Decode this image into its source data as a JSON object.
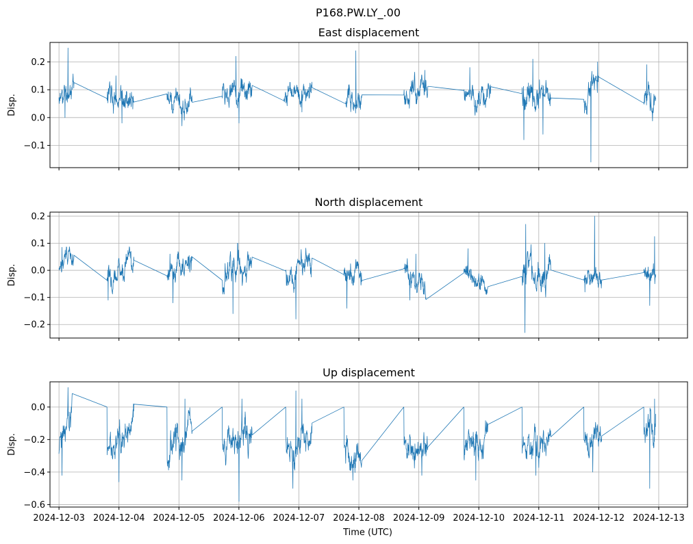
{
  "figure": {
    "suptitle": "P168.PW.LY_.00",
    "xlabel": "Time (UTC)"
  },
  "colors": {
    "series": "#1f77b4"
  },
  "chart_data": [
    {
      "type": "line",
      "title": "East displacement",
      "ylabel": "Disp.",
      "xlim": [
        -0.15,
        10.48
      ],
      "ylim": [
        -0.18,
        0.27
      ],
      "yticks": [
        -0.1,
        0.0,
        0.1,
        0.2
      ],
      "yticklabels": [
        "−0.1",
        "0.0",
        "0.1",
        "0.2"
      ],
      "segments": [
        {
          "start": 0.0,
          "end": 0.25,
          "seed": 11,
          "base": [
            0.06,
            0.12
          ],
          "amp": 0.05,
          "spikes": [
            [
              0.15,
              0.25
            ],
            [
              0.1,
              0.0
            ]
          ]
        },
        {
          "start": 0.8,
          "end": 1.25,
          "seed": 12,
          "base": [
            0.07,
            0.08
          ],
          "amp": 0.05,
          "spikes": [
            [
              1.05,
              -0.02
            ],
            [
              0.95,
              0.15
            ]
          ]
        },
        {
          "start": 1.8,
          "end": 2.22,
          "seed": 13,
          "base": [
            0.07,
            0.06
          ],
          "amp": 0.05,
          "spikes": [
            [
              2.05,
              -0.03
            ]
          ]
        },
        {
          "start": 2.72,
          "end": 3.22,
          "seed": 14,
          "base": [
            0.075,
            0.115
          ],
          "amp": 0.05,
          "spikes": [
            [
              3.0,
              -0.02
            ],
            [
              2.95,
              0.22
            ]
          ]
        },
        {
          "start": 3.75,
          "end": 4.22,
          "seed": 15,
          "base": [
            0.07,
            0.1
          ],
          "amp": 0.04,
          "spikes": [
            [
              4.05,
              0.02
            ]
          ]
        },
        {
          "start": 4.78,
          "end": 5.05,
          "seed": 16,
          "base": [
            0.075,
            0.055
          ],
          "amp": 0.05,
          "spikes": [
            [
              4.95,
              0.24
            ]
          ]
        },
        {
          "start": 5.75,
          "end": 6.15,
          "seed": 17,
          "base": [
            0.075,
            0.11
          ],
          "amp": 0.05,
          "spikes": [
            [
              6.1,
              0.17
            ]
          ]
        },
        {
          "start": 6.75,
          "end": 7.2,
          "seed": 18,
          "base": [
            0.075,
            0.08
          ],
          "amp": 0.05,
          "spikes": [
            [
              6.85,
              0.18
            ]
          ]
        },
        {
          "start": 7.72,
          "end": 8.2,
          "seed": 19,
          "base": [
            0.075,
            0.07
          ],
          "amp": 0.06,
          "spikes": [
            [
              7.75,
              -0.08
            ],
            [
              7.9,
              0.21
            ],
            [
              8.07,
              -0.06
            ]
          ]
        },
        {
          "start": 8.75,
          "end": 9.0,
          "seed": 20,
          "base": [
            0.07,
            0.12
          ],
          "amp": 0.05,
          "spikes": [
            [
              8.87,
              -0.16
            ],
            [
              8.98,
              0.2
            ]
          ]
        },
        {
          "start": 9.75,
          "end": 9.95,
          "seed": 21,
          "base": [
            0.07,
            0.08
          ],
          "amp": 0.05,
          "spikes": [
            [
              9.8,
              0.19
            ]
          ]
        }
      ]
    },
    {
      "type": "line",
      "title": "North displacement",
      "ylabel": "Disp.",
      "xlim": [
        -0.15,
        10.48
      ],
      "ylim": [
        -0.25,
        0.215
      ],
      "yticks": [
        -0.2,
        -0.1,
        0.0,
        0.1,
        0.2
      ],
      "yticklabels": [
        "−0.2",
        "−0.1",
        "0.0",
        "0.1",
        "0.2"
      ],
      "segments": [
        {
          "start": 0.0,
          "end": 0.25,
          "seed": 31,
          "base": [
            0.01,
            0.055
          ],
          "amp": 0.04,
          "spikes": [
            [
              0.05,
              0.085
            ]
          ]
        },
        {
          "start": 0.8,
          "end": 1.25,
          "seed": 32,
          "base": [
            -0.02,
            0.05
          ],
          "amp": 0.05,
          "spikes": [
            [
              0.82,
              -0.11
            ],
            [
              1.2,
              0.07
            ]
          ]
        },
        {
          "start": 1.8,
          "end": 2.22,
          "seed": 33,
          "base": [
            -0.02,
            0.05
          ],
          "amp": 0.05,
          "spikes": [
            [
              1.9,
              -0.12
            ],
            [
              1.85,
              0.06
            ]
          ]
        },
        {
          "start": 2.72,
          "end": 3.22,
          "seed": 34,
          "base": [
            -0.02,
            0.05
          ],
          "amp": 0.06,
          "spikes": [
            [
              2.9,
              -0.16
            ],
            [
              2.98,
              0.1
            ]
          ]
        },
        {
          "start": 3.78,
          "end": 4.22,
          "seed": 35,
          "base": [
            -0.02,
            0.045
          ],
          "amp": 0.05,
          "spikes": [
            [
              3.95,
              -0.18
            ],
            [
              4.1,
              0.04
            ]
          ]
        },
        {
          "start": 4.75,
          "end": 5.05,
          "seed": 36,
          "base": [
            -0.02,
            -0.045
          ],
          "amp": 0.05,
          "spikes": [
            [
              4.8,
              -0.14
            ],
            [
              4.95,
              0.04
            ]
          ]
        },
        {
          "start": 5.75,
          "end": 6.12,
          "seed": 37,
          "base": [
            -0.015,
            -0.055
          ],
          "amp": 0.05,
          "spikes": [
            [
              5.85,
              -0.11
            ],
            [
              5.95,
              0.06
            ]
          ]
        },
        {
          "start": 6.75,
          "end": 7.15,
          "seed": 38,
          "base": [
            -0.015,
            -0.04
          ],
          "amp": 0.04,
          "spikes": [
            [
              6.82,
              0.08
            ]
          ]
        },
        {
          "start": 7.72,
          "end": 8.2,
          "seed": 39,
          "base": [
            -0.015,
            -0.005
          ],
          "amp": 0.06,
          "spikes": [
            [
              7.77,
              -0.23
            ],
            [
              7.78,
              0.17
            ],
            [
              8.1,
              0.1
            ]
          ]
        },
        {
          "start": 8.75,
          "end": 9.05,
          "seed": 40,
          "base": [
            -0.02,
            -0.015
          ],
          "amp": 0.04,
          "spikes": [
            [
              8.93,
              0.2
            ],
            [
              8.77,
              -0.08
            ]
          ]
        },
        {
          "start": 9.75,
          "end": 9.95,
          "seed": 41,
          "base": [
            -0.02,
            -0.02
          ],
          "amp": 0.05,
          "spikes": [
            [
              9.93,
              0.125
            ],
            [
              9.85,
              -0.13
            ]
          ]
        }
      ]
    },
    {
      "type": "line",
      "title": "Up displacement",
      "ylabel": "Disp.",
      "xlim": [
        -0.15,
        10.48
      ],
      "ylim": [
        -0.615,
        0.155
      ],
      "yticks": [
        -0.6,
        -0.4,
        -0.2,
        0.0
      ],
      "yticklabels": [
        "−0.6",
        "−0.4",
        "−0.2",
        "0.0"
      ],
      "segments": [
        {
          "start": 0.0,
          "end": 0.22,
          "seed": 51,
          "base": [
            -0.25,
            -0.02
          ],
          "amp": 0.1,
          "spikes": [
            [
              0.15,
              0.12
            ],
            [
              0.05,
              -0.42
            ]
          ]
        },
        {
          "start": 0.8,
          "end": 1.25,
          "seed": 52,
          "base": [
            -0.28,
            -0.1
          ],
          "amp": 0.1,
          "spikes": [
            [
              0.8,
              0.0
            ],
            [
              1.0,
              -0.46
            ]
          ]
        },
        {
          "start": 1.8,
          "end": 2.22,
          "seed": 53,
          "base": [
            -0.28,
            -0.1
          ],
          "amp": 0.12,
          "spikes": [
            [
              1.8,
              0.0
            ],
            [
              2.05,
              -0.45
            ],
            [
              2.1,
              0.05
            ]
          ]
        },
        {
          "start": 2.72,
          "end": 3.22,
          "seed": 54,
          "base": [
            -0.25,
            -0.22
          ],
          "amp": 0.12,
          "spikes": [
            [
              2.72,
              0.0
            ],
            [
              3.0,
              -0.58
            ],
            [
              3.05,
              0.05
            ]
          ]
        },
        {
          "start": 3.78,
          "end": 4.22,
          "seed": 55,
          "base": [
            -0.25,
            -0.22
          ],
          "amp": 0.12,
          "spikes": [
            [
              3.78,
              0.0
            ],
            [
              3.95,
              0.1
            ],
            [
              3.9,
              -0.5
            ],
            [
              4.05,
              0.05
            ]
          ]
        },
        {
          "start": 4.75,
          "end": 5.05,
          "seed": 56,
          "base": [
            -0.25,
            -0.37
          ],
          "amp": 0.1,
          "spikes": [
            [
              4.75,
              0.0
            ],
            [
              4.9,
              -0.45
            ]
          ]
        },
        {
          "start": 5.75,
          "end": 6.15,
          "seed": 57,
          "base": [
            -0.28,
            -0.25
          ],
          "amp": 0.1,
          "spikes": [
            [
              5.75,
              0.0
            ],
            [
              6.05,
              -0.42
            ]
          ]
        },
        {
          "start": 6.75,
          "end": 7.15,
          "seed": 58,
          "base": [
            -0.28,
            -0.21
          ],
          "amp": 0.1,
          "spikes": [
            [
              6.75,
              0.0
            ],
            [
              6.95,
              -0.45
            ]
          ]
        },
        {
          "start": 7.72,
          "end": 8.2,
          "seed": 59,
          "base": [
            -0.25,
            -0.17
          ],
          "amp": 0.1,
          "spikes": [
            [
              7.72,
              0.0
            ],
            [
              7.95,
              -0.42
            ]
          ]
        },
        {
          "start": 8.75,
          "end": 9.05,
          "seed": 60,
          "base": [
            -0.25,
            -0.17
          ],
          "amp": 0.1,
          "spikes": [
            [
              8.75,
              0.0
            ],
            [
              8.9,
              -0.4
            ]
          ]
        },
        {
          "start": 9.75,
          "end": 9.95,
          "seed": 61,
          "base": [
            -0.22,
            -0.12
          ],
          "amp": 0.1,
          "spikes": [
            [
              9.75,
              0.0
            ],
            [
              9.85,
              -0.5
            ],
            [
              9.93,
              0.05
            ]
          ]
        }
      ]
    }
  ],
  "x_axis": {
    "ticks": [
      0,
      1,
      2,
      3,
      4,
      5,
      6,
      7,
      8,
      9,
      10
    ],
    "ticklabels": [
      "2024-12-03",
      "2024-12-04",
      "2024-12-05",
      "2024-12-06",
      "2024-12-07",
      "2024-12-08",
      "2024-12-09",
      "2024-12-10",
      "2024-12-11",
      "2024-12-12",
      "2024-12-13"
    ]
  }
}
